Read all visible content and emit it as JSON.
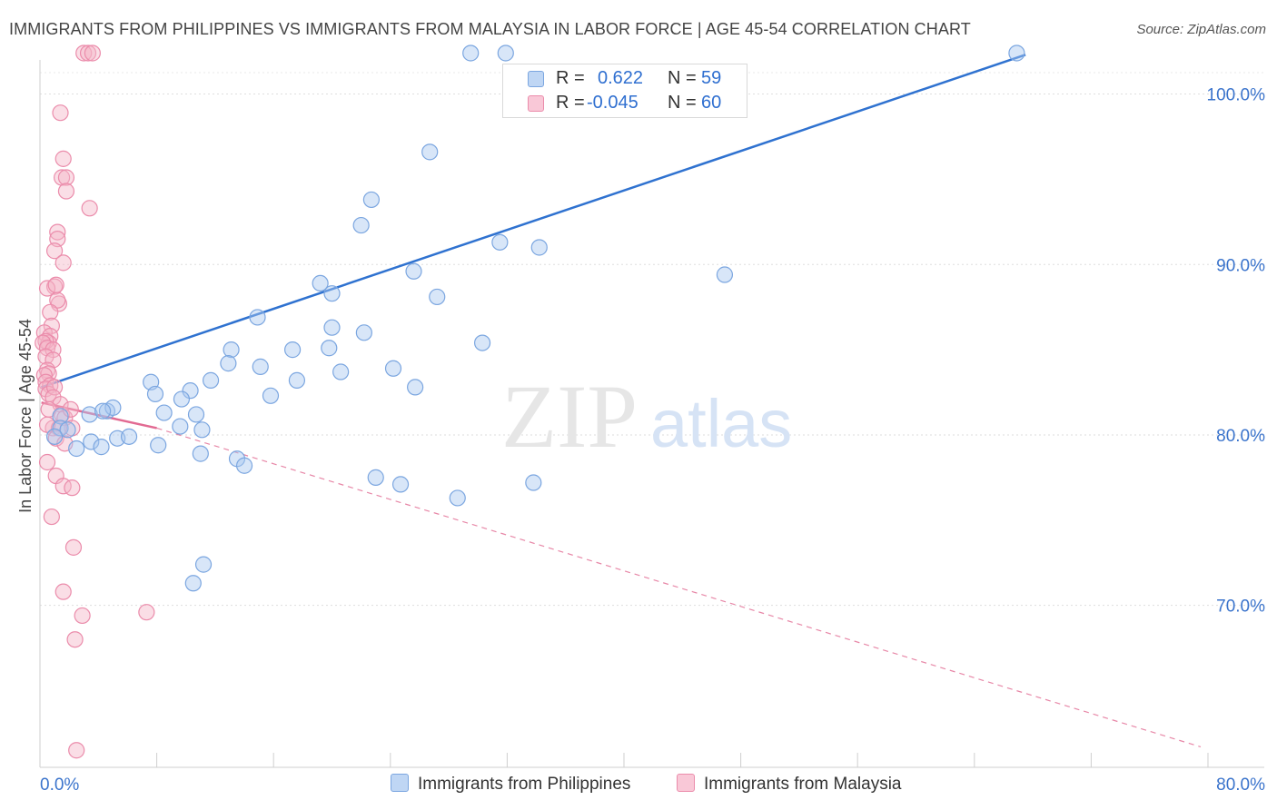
{
  "title": "IMMIGRANTS FROM PHILIPPINES VS IMMIGRANTS FROM MALAYSIA IN LABOR FORCE | AGE 45-54 CORRELATION CHART",
  "source": "Source: ZipAtlas.com",
  "watermark": {
    "zip": "ZIP",
    "atlas": "atlas"
  },
  "legend": {
    "rows": [
      {
        "r_label": "R =",
        "r_value": "0.622",
        "n_label": "N =",
        "n_value": "59"
      },
      {
        "r_label": "R =",
        "r_value": "-0.045",
        "n_label": "N =",
        "n_value": "60"
      }
    ]
  },
  "colors": {
    "blue_fill": "#a9c8f0",
    "blue_stroke": "#7ba6e0",
    "blue_line": "#2f72d0",
    "pink_fill": "#f5b5c8",
    "pink_stroke": "#eb8cab",
    "pink_line": "#e26a92",
    "axis_label": "#3b74cc",
    "grid": "#dedede"
  },
  "chart_data": {
    "type": "scatter",
    "title": "IMMIGRANTS FROM PHILIPPINES VS IMMIGRANTS FROM MALAYSIA IN LABOR FORCE | AGE 45-54 CORRELATION CHART",
    "xlabel": "",
    "ylabel": "In Labor Force | Age 45-54",
    "xlim": [
      0,
      80
    ],
    "ylim": [
      60.5,
      102
    ],
    "x_tick_labels": [
      "0.0%",
      "80.0%"
    ],
    "y_ticks": [
      70,
      80,
      90,
      100
    ],
    "y_tick_labels": [
      "70.0%",
      "80.0%",
      "90.0%",
      "100.0%"
    ],
    "legend_position": "top-center",
    "series": [
      {
        "name": "Immigrants from Philippines",
        "color": "blue",
        "trend": {
          "x0": 0.1,
          "y0": 82.8,
          "x1": 67.5,
          "y1": 102.3
        },
        "points": [
          [
            29.5,
            102.4
          ],
          [
            31.9,
            102.4
          ],
          [
            66.9,
            102.4
          ],
          [
            26.7,
            96.6
          ],
          [
            22.7,
            93.8
          ],
          [
            22.0,
            92.3
          ],
          [
            31.5,
            91.3
          ],
          [
            34.2,
            91.0
          ],
          [
            25.6,
            89.6
          ],
          [
            46.9,
            89.4
          ],
          [
            19.2,
            88.9
          ],
          [
            20.0,
            88.3
          ],
          [
            27.2,
            88.1
          ],
          [
            14.9,
            86.9
          ],
          [
            20.0,
            86.3
          ],
          [
            22.2,
            86.0
          ],
          [
            30.3,
            85.4
          ],
          [
            19.8,
            85.1
          ],
          [
            13.1,
            85.0
          ],
          [
            17.3,
            85.0
          ],
          [
            12.9,
            84.2
          ],
          [
            15.1,
            84.0
          ],
          [
            20.6,
            83.7
          ],
          [
            24.2,
            83.9
          ],
          [
            11.7,
            83.2
          ],
          [
            17.6,
            83.2
          ],
          [
            7.6,
            83.1
          ],
          [
            7.9,
            82.4
          ],
          [
            10.3,
            82.6
          ],
          [
            25.7,
            82.8
          ],
          [
            9.7,
            82.1
          ],
          [
            15.8,
            82.3
          ],
          [
            4.6,
            81.4
          ],
          [
            5.0,
            81.6
          ],
          [
            8.5,
            81.3
          ],
          [
            10.7,
            81.2
          ],
          [
            3.4,
            81.2
          ],
          [
            1.4,
            81.1
          ],
          [
            4.3,
            81.4
          ],
          [
            1.4,
            80.4
          ],
          [
            1.9,
            80.3
          ],
          [
            9.6,
            80.5
          ],
          [
            11.1,
            80.3
          ],
          [
            8.1,
            79.4
          ],
          [
            5.3,
            79.8
          ],
          [
            6.1,
            79.9
          ],
          [
            3.5,
            79.6
          ],
          [
            4.2,
            79.3
          ],
          [
            2.5,
            79.2
          ],
          [
            13.5,
            78.6
          ],
          [
            14.0,
            78.2
          ],
          [
            11.0,
            78.9
          ],
          [
            23.0,
            77.5
          ],
          [
            24.7,
            77.1
          ],
          [
            28.6,
            76.3
          ],
          [
            33.8,
            77.2
          ],
          [
            11.2,
            72.4
          ],
          [
            10.5,
            71.3
          ],
          [
            1.0,
            79.9
          ]
        ]
      },
      {
        "name": "Immigrants from Malaysia",
        "color": "pink",
        "trend": {
          "x0": 0.1,
          "y0": 81.9,
          "x1": 8.0,
          "y1": 80.4,
          "dash_x1": 79.5,
          "dash_y1": 61.7
        },
        "points": [
          [
            3.0,
            102.4
          ],
          [
            3.3,
            102.4
          ],
          [
            3.6,
            102.4
          ],
          [
            1.4,
            98.9
          ],
          [
            1.6,
            96.2
          ],
          [
            1.5,
            95.1
          ],
          [
            1.8,
            95.1
          ],
          [
            1.8,
            94.3
          ],
          [
            3.4,
            93.3
          ],
          [
            1.2,
            91.9
          ],
          [
            1.2,
            91.5
          ],
          [
            1.0,
            90.8
          ],
          [
            1.6,
            90.1
          ],
          [
            1.0,
            88.7
          ],
          [
            0.5,
            88.6
          ],
          [
            1.1,
            88.8
          ],
          [
            1.3,
            87.7
          ],
          [
            1.2,
            87.9
          ],
          [
            0.7,
            87.2
          ],
          [
            0.8,
            86.4
          ],
          [
            0.3,
            86.0
          ],
          [
            0.7,
            85.8
          ],
          [
            0.6,
            85.4
          ],
          [
            0.4,
            85.5
          ],
          [
            0.2,
            85.4
          ],
          [
            0.5,
            85.1
          ],
          [
            0.9,
            85.0
          ],
          [
            0.4,
            84.6
          ],
          [
            0.9,
            84.4
          ],
          [
            0.5,
            83.8
          ],
          [
            0.6,
            83.6
          ],
          [
            0.3,
            83.5
          ],
          [
            0.4,
            83.1
          ],
          [
            0.7,
            82.9
          ],
          [
            0.4,
            82.7
          ],
          [
            0.6,
            82.4
          ],
          [
            1.0,
            82.8
          ],
          [
            0.9,
            82.2
          ],
          [
            1.4,
            81.8
          ],
          [
            0.6,
            81.5
          ],
          [
            1.5,
            81.2
          ],
          [
            1.7,
            81.0
          ],
          [
            2.2,
            80.4
          ],
          [
            0.9,
            80.4
          ],
          [
            2.1,
            81.5
          ],
          [
            1.3,
            80.4
          ],
          [
            0.5,
            80.6
          ],
          [
            1.1,
            79.8
          ],
          [
            1.7,
            79.5
          ],
          [
            0.5,
            78.4
          ],
          [
            1.1,
            77.6
          ],
          [
            1.6,
            77.0
          ],
          [
            2.2,
            76.9
          ],
          [
            0.8,
            75.2
          ],
          [
            2.3,
            73.4
          ],
          [
            1.6,
            70.8
          ],
          [
            7.3,
            69.6
          ],
          [
            2.9,
            69.4
          ],
          [
            2.4,
            68.0
          ],
          [
            2.5,
            61.5
          ]
        ]
      }
    ]
  },
  "bottom_legend": [
    {
      "label": "Immigrants from Philippines"
    },
    {
      "label": "Immigrants from Malaysia"
    }
  ]
}
